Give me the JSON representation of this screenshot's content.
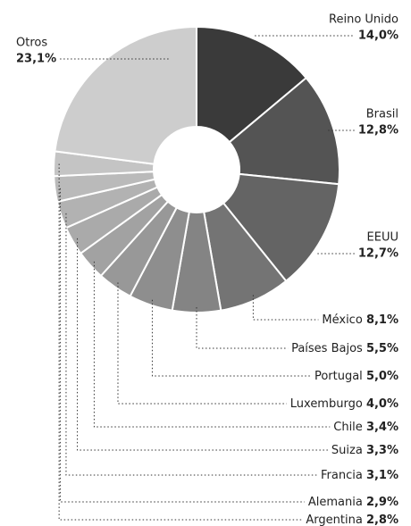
{
  "chart_data": {
    "type": "pie",
    "donut": true,
    "categories": [
      "Reino Unido",
      "Brasil",
      "EEUU",
      "México",
      "Países Bajos",
      "Portugal",
      "Luxemburgo",
      "Chile",
      "Suiza",
      "Francia",
      "Alemania",
      "Argentina",
      "Otros"
    ],
    "values": [
      14.0,
      12.8,
      12.7,
      8.1,
      5.5,
      5.0,
      4.0,
      3.4,
      3.3,
      3.1,
      2.9,
      2.8,
      23.1
    ],
    "value_labels": [
      "14,0%",
      "12,8%",
      "12,7%",
      "8,1%",
      "5,5%",
      "5,0%",
      "4,0%",
      "3,4%",
      "3,3%",
      "3,1%",
      "2,9%",
      "2,8%",
      "23,1%"
    ],
    "colors": [
      "#3a3a3a",
      "#545454",
      "#646464",
      "#747474",
      "#848484",
      "#8e8e8e",
      "#989898",
      "#a2a2a2",
      "#aaaaaa",
      "#b2b2b2",
      "#bababa",
      "#c4c4c4",
      "#cdcdcd"
    ]
  }
}
